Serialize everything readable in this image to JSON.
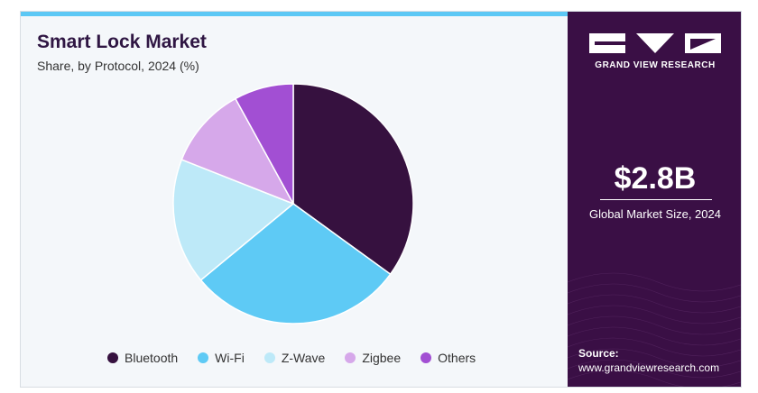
{
  "header": {
    "title": "Smart Lock Market",
    "subtitle": "Share, by Protocol, 2024 (%)"
  },
  "chart_data": {
    "type": "pie",
    "title": "Smart Lock Market",
    "subtitle": "Share, by Protocol, 2024 (%)",
    "categories": [
      "Bluetooth",
      "Wi-Fi",
      "Z-Wave",
      "Zigbee",
      "Others"
    ],
    "values": [
      35,
      29,
      17,
      11,
      8
    ],
    "colors": [
      "#36113f",
      "#5ecaf5",
      "#bde9f8",
      "#d6a8ea",
      "#a24fd3"
    ],
    "legend": "bottom"
  },
  "sidebar": {
    "brand": "GRAND VIEW RESEARCH",
    "market_size": "$2.8B",
    "market_caption": "Global Market Size, 2024",
    "source_label": "Source:",
    "source_url": "www.grandviewresearch.com"
  }
}
